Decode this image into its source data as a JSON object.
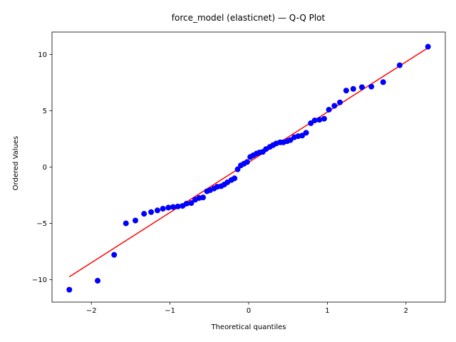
{
  "chart_data": {
    "type": "scatter",
    "title": "force_model (elasticnet) — Q-Q Plot",
    "xlabel": "Theoretical quantiles",
    "ylabel": "Ordered Values",
    "xlim": [
      -2.5,
      2.5
    ],
    "ylim": [
      -12,
      12
    ],
    "x_ticks": [
      -2,
      -1,
      0,
      1,
      2
    ],
    "x_tick_labels": [
      "−2",
      "−1",
      "0",
      "1",
      "2"
    ],
    "y_ticks": [
      -10,
      -5,
      0,
      5,
      10
    ],
    "y_tick_labels": [
      "−10",
      "−5",
      "0",
      "5",
      "10"
    ],
    "grid": false,
    "series": [
      {
        "type": "scatter",
        "color": "#0000ff",
        "points": [
          [
            -2.28,
            -10.9
          ],
          [
            -1.92,
            -10.1
          ],
          [
            -1.71,
            -7.8
          ],
          [
            -1.56,
            -5.0
          ],
          [
            -1.44,
            -4.75
          ],
          [
            -1.33,
            -4.15
          ],
          [
            -1.24,
            -4.0
          ],
          [
            -1.16,
            -3.85
          ],
          [
            -1.09,
            -3.7
          ],
          [
            -1.02,
            -3.6
          ],
          [
            -0.96,
            -3.55
          ],
          [
            -0.9,
            -3.5
          ],
          [
            -0.84,
            -3.45
          ],
          [
            -0.79,
            -3.25
          ],
          [
            -0.73,
            -3.2
          ],
          [
            -0.68,
            -2.9
          ],
          [
            -0.63,
            -2.75
          ],
          [
            -0.58,
            -2.7
          ],
          [
            -0.53,
            -2.15
          ],
          [
            -0.49,
            -2.05
          ],
          [
            -0.44,
            -1.9
          ],
          [
            -0.4,
            -1.75
          ],
          [
            -0.35,
            -1.7
          ],
          [
            -0.31,
            -1.55
          ],
          [
            -0.27,
            -1.35
          ],
          [
            -0.22,
            -1.15
          ],
          [
            -0.18,
            -1.0
          ],
          [
            -0.14,
            -0.2
          ],
          [
            -0.1,
            0.15
          ],
          [
            -0.06,
            0.3
          ],
          [
            -0.02,
            0.45
          ],
          [
            0.02,
            0.9
          ],
          [
            0.06,
            1.05
          ],
          [
            0.1,
            1.2
          ],
          [
            0.14,
            1.3
          ],
          [
            0.18,
            1.35
          ],
          [
            0.22,
            1.6
          ],
          [
            0.27,
            1.8
          ],
          [
            0.31,
            1.95
          ],
          [
            0.35,
            2.1
          ],
          [
            0.4,
            2.2
          ],
          [
            0.44,
            2.2
          ],
          [
            0.49,
            2.3
          ],
          [
            0.53,
            2.4
          ],
          [
            0.58,
            2.65
          ],
          [
            0.63,
            2.75
          ],
          [
            0.68,
            2.8
          ],
          [
            0.73,
            3.05
          ],
          [
            0.79,
            3.9
          ],
          [
            0.84,
            4.15
          ],
          [
            0.9,
            4.2
          ],
          [
            0.96,
            4.3
          ],
          [
            1.02,
            5.1
          ],
          [
            1.09,
            5.45
          ],
          [
            1.16,
            5.75
          ],
          [
            1.24,
            6.8
          ],
          [
            1.33,
            6.95
          ],
          [
            1.44,
            7.1
          ],
          [
            1.56,
            7.15
          ],
          [
            1.71,
            7.55
          ],
          [
            1.92,
            9.05
          ],
          [
            2.28,
            10.7
          ]
        ]
      },
      {
        "type": "line",
        "color": "#ff0000",
        "points": [
          [
            -2.28,
            -9.75
          ],
          [
            2.28,
            10.6
          ]
        ]
      }
    ]
  }
}
